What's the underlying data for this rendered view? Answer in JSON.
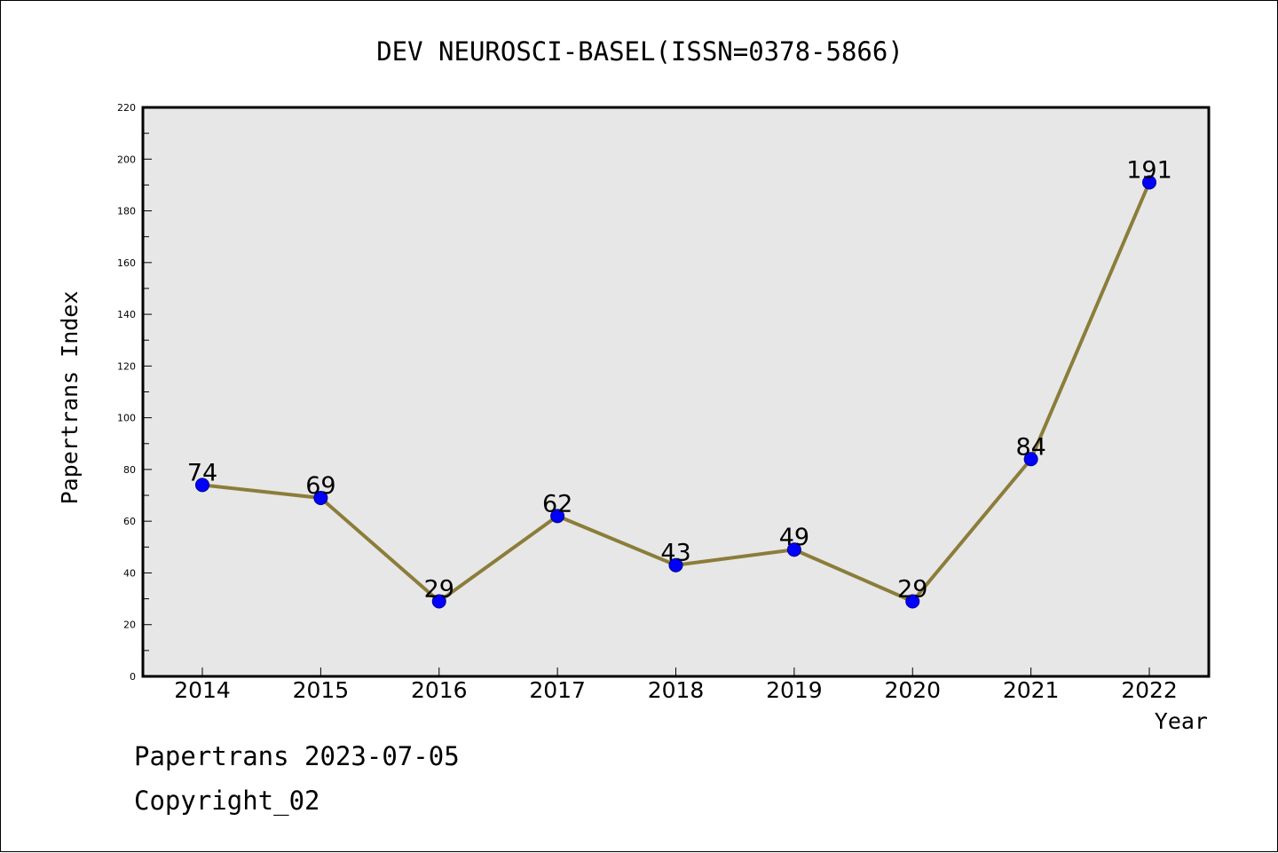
{
  "chart_data": {
    "type": "line",
    "title": "DEV NEUROSCI-BASEL(ISSN=0378-5866)",
    "xlabel": "Year",
    "ylabel": "Papertrans Index",
    "categories": [
      "2014",
      "2015",
      "2016",
      "2017",
      "2018",
      "2019",
      "2020",
      "2021",
      "2022"
    ],
    "series": [
      {
        "values": [
          74,
          69,
          29,
          62,
          43,
          49,
          29,
          84,
          191
        ]
      }
    ],
    "ylim": [
      0,
      220
    ],
    "y_major_step": 20,
    "y_minor_step": 10,
    "y_tick_labels": [
      "0",
      "20",
      "40",
      "60",
      "80",
      "100",
      "120",
      "140",
      "160",
      "180",
      "200",
      "220"
    ],
    "data_labels": [
      "74",
      "69",
      "29",
      "62",
      "43",
      "49",
      "29",
      "84",
      "191"
    ],
    "grid": false,
    "legend": "none",
    "colors": {
      "plot_background": "#e7e7e7",
      "line": "#8b7d3a",
      "marker_fill": "#0000ff",
      "marker_edge": "#00008b",
      "axis": "#000000"
    }
  },
  "footer": {
    "line1": "Papertrans 2023-07-05",
    "line2": "Copyright_02"
  }
}
